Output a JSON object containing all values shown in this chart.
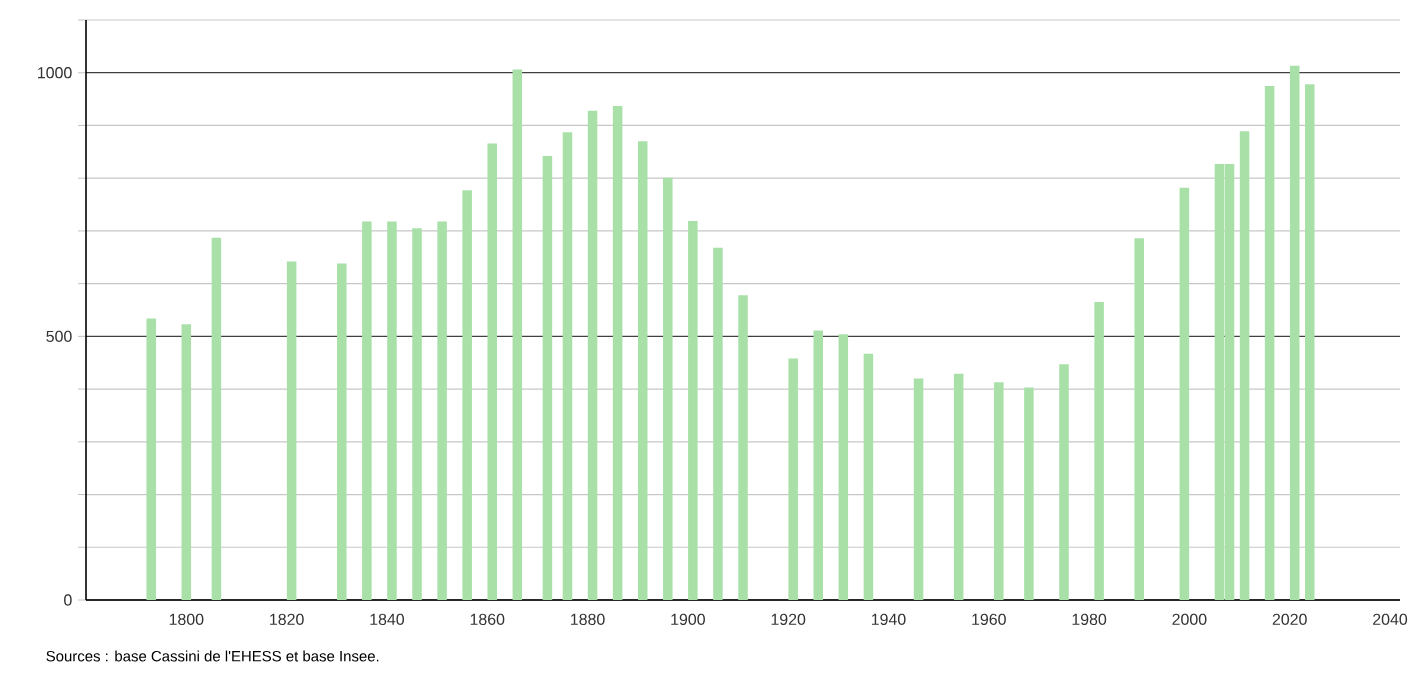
{
  "chart_data": {
    "type": "bar",
    "color": "#a8e0a8",
    "x": [
      1793,
      1800,
      1806,
      1821,
      1831,
      1836,
      1841,
      1846,
      1851,
      1856,
      1861,
      1866,
      1872,
      1876,
      1881,
      1886,
      1891,
      1896,
      1901,
      1906,
      1911,
      1921,
      1926,
      1931,
      1936,
      1946,
      1954,
      1962,
      1968,
      1975,
      1982,
      1990,
      1999,
      2006,
      2008,
      2011,
      2016,
      2021,
      2024
    ],
    "values": [
      534,
      523,
      687,
      642,
      638,
      718,
      718,
      705,
      718,
      777,
      866,
      1006,
      842,
      887,
      928,
      937,
      870,
      801,
      719,
      668,
      578,
      458,
      511,
      504,
      467,
      420,
      429,
      413,
      403,
      447,
      565,
      686,
      782,
      827,
      827,
      889,
      975,
      1013,
      978
    ],
    "xlim": [
      1780,
      2042
    ],
    "ylim": [
      0,
      1100
    ],
    "xticks": [
      1800,
      1820,
      1840,
      1860,
      1880,
      1900,
      1920,
      1940,
      1960,
      1980,
      2000,
      2020,
      2040
    ],
    "yticks": [
      0,
      {
        "value": 100,
        "label": null
      },
      {
        "value": 200,
        "label": null
      },
      {
        "value": 300,
        "label": null
      },
      {
        "value": 400,
        "label": null
      },
      500,
      {
        "value": 600,
        "label": null
      },
      {
        "value": 700,
        "label": null
      },
      {
        "value": 800,
        "label": null
      },
      {
        "value": 900,
        "label": null
      },
      1000,
      {
        "value": 1100,
        "label": null
      }
    ],
    "grid": "y",
    "annotations": [
      "Sources : base Cassini de l'EHESS et base Insee."
    ]
  }
}
